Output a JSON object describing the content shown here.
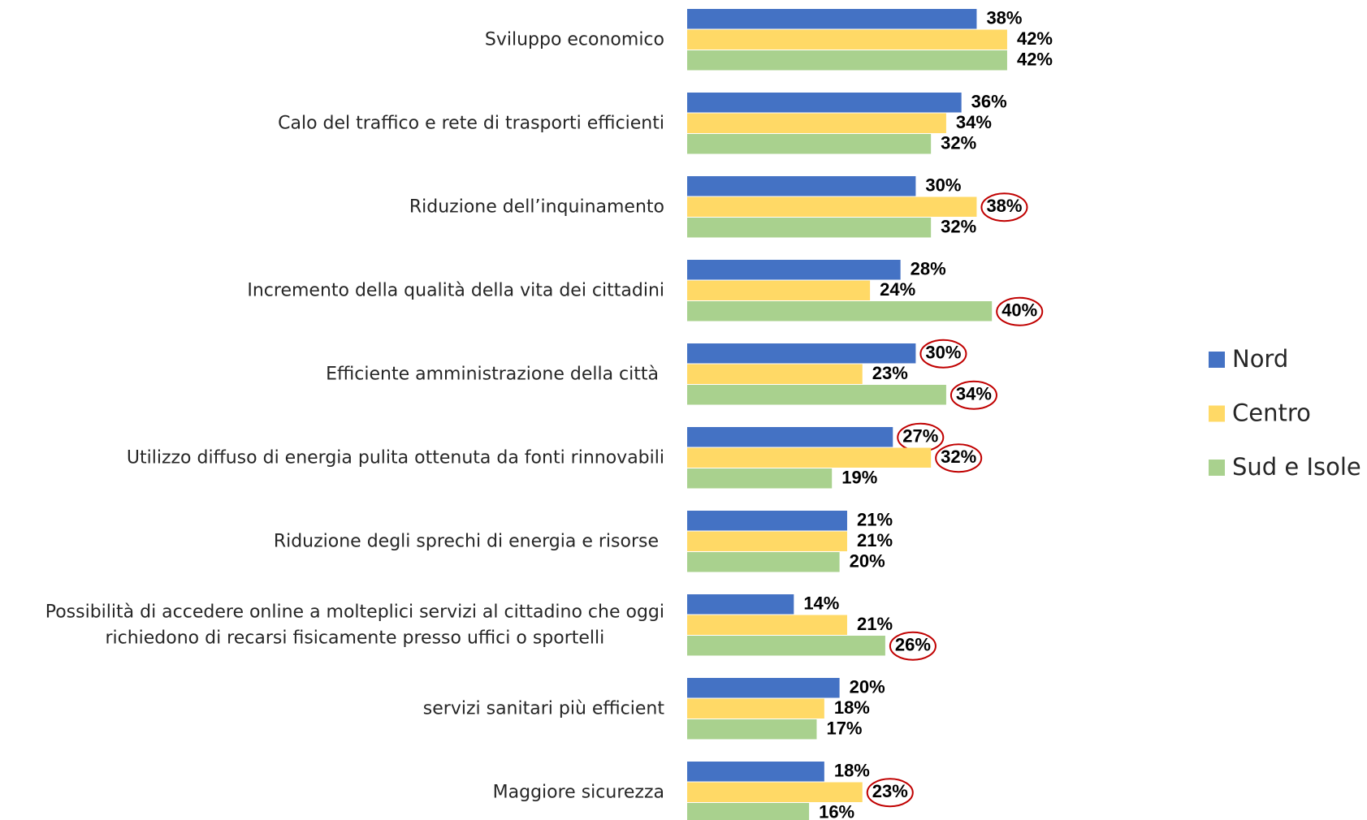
{
  "chart_data": {
    "type": "hbar",
    "categories": [
      "Sviluppo economico",
      "Calo del traffico e rete di trasporti efficienti",
      "Riduzione dell’inquinamento",
      "Incremento della qualità della vita dei cittadini",
      "Efficiente amministrazione della città ",
      "Utilizzo diffuso di energia pulita ottenuta da fonti rinnovabili",
      "Riduzione degli sprechi di energia e risorse ",
      "Possibilità di accedere online a molteplici servizi al cittadino che oggi\nrichiedono di recarsi fisicamente presso uffici o sportelli",
      "servizi sanitari più efficient",
      "Maggiore sicurezza"
    ],
    "series": [
      {
        "name": "Nord",
        "color": "#4472c4",
        "values": [
          38,
          36,
          30,
          28,
          30,
          27,
          21,
          14,
          20,
          18
        ],
        "value_labels": [
          "38%",
          "36%",
          "30%",
          "28%",
          "30%",
          "27%",
          "21%",
          "14%",
          "20%",
          "18%"
        ]
      },
      {
        "name": "Centro",
        "color": "#ffd966",
        "values": [
          42,
          34,
          38,
          24,
          23,
          32,
          21,
          21,
          18,
          23
        ],
        "value_labels": [
          "42%",
          "34%",
          "38%",
          "24%",
          "23%",
          "32%",
          "21%",
          "21%",
          "18%",
          "23%"
        ]
      },
      {
        "name": "Sud e Isole",
        "color": "#a9d18e",
        "values": [
          42,
          32,
          32,
          40,
          34,
          19,
          20,
          26,
          17,
          16
        ],
        "value_labels": [
          "42%",
          "32%",
          "32%",
          "40%",
          "34%",
          "19%",
          "20%",
          "26%",
          "17%",
          "16%"
        ]
      }
    ],
    "highlights": [
      {
        "series": 1,
        "index": 2
      },
      {
        "series": 2,
        "index": 3
      },
      {
        "series": 0,
        "index": 4
      },
      {
        "series": 2,
        "index": 4
      },
      {
        "series": 0,
        "index": 5
      },
      {
        "series": 1,
        "index": 5
      },
      {
        "series": 2,
        "index": 7
      },
      {
        "series": 1,
        "index": 9
      }
    ],
    "highlight_color": "#c00000",
    "legend": "right"
  }
}
